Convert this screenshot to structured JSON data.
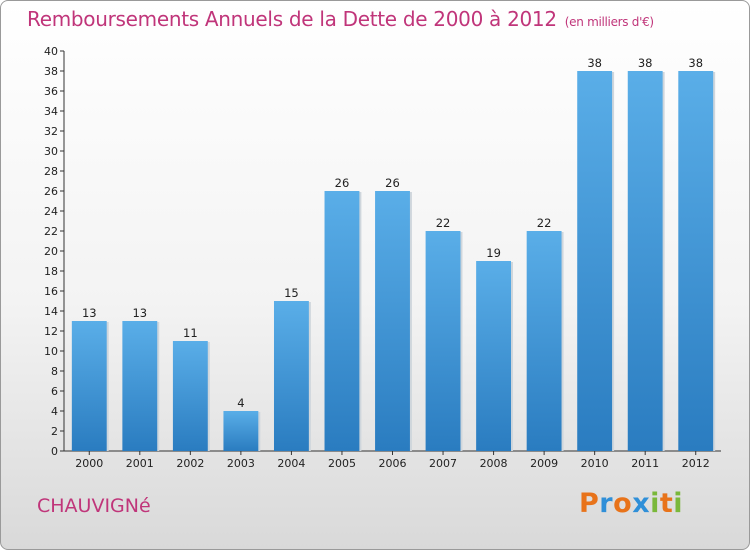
{
  "header": {
    "title": "Remboursements Annuels de la Dette de 2000 à 2012",
    "unit": "(en milliers d'€)"
  },
  "footer": {
    "commune": "CHAUVIGNé",
    "brand_letters": [
      {
        "char": "P",
        "color": "#e8731a"
      },
      {
        "char": "r",
        "color": "#2f8fd8"
      },
      {
        "char": "o",
        "color": "#e8731a"
      },
      {
        "char": "x",
        "color": "#2f8fd8"
      },
      {
        "char": "i",
        "color": "#7ab83a"
      },
      {
        "char": "t",
        "color": "#e8731a"
      },
      {
        "char": "i",
        "color": "#7ab83a"
      }
    ]
  },
  "chart_data": {
    "type": "bar",
    "categories": [
      "2000",
      "2001",
      "2002",
      "2003",
      "2004",
      "2005",
      "2006",
      "2007",
      "2008",
      "2009",
      "2010",
      "2011",
      "2012"
    ],
    "values": [
      13,
      13,
      11,
      4,
      15,
      26,
      26,
      22,
      19,
      22,
      38,
      38,
      38
    ],
    "title": "Remboursements Annuels de la Dette de 2000 à 2012",
    "xlabel": "",
    "ylabel": "",
    "ylim": [
      0,
      40
    ],
    "ytick_step": 2,
    "grid": false,
    "bar_color_top": "#5aaee8",
    "bar_color_bottom": "#2a7cc0"
  }
}
